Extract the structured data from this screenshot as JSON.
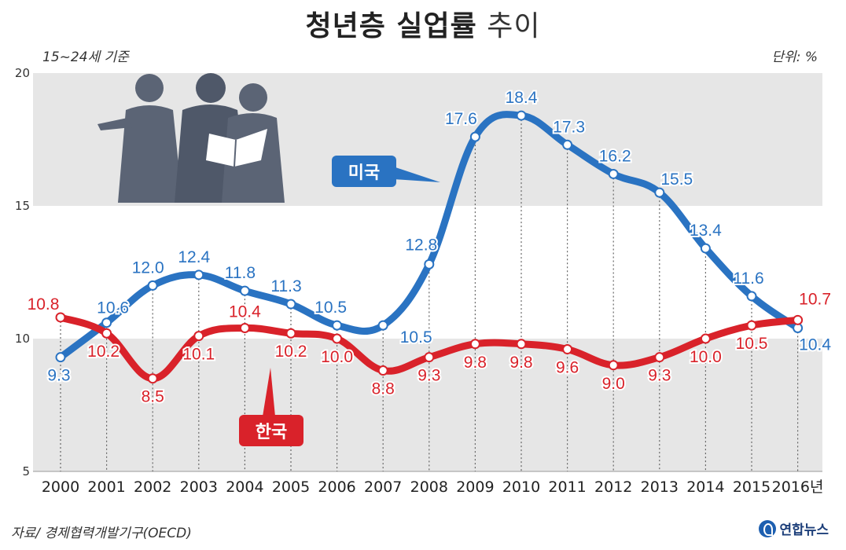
{
  "header": {
    "title_bold": "청년층 실업률",
    "title_light": "추이",
    "subtitle": "15~24세 기준",
    "unit": "단위: %"
  },
  "footer": {
    "source": "자료/ 경제협력개발기구(OECD)",
    "logo": "연합뉴스"
  },
  "colors": {
    "us": "#2a73c2",
    "korea": "#d9222a",
    "band": "#e6e6e6"
  },
  "chart_data": {
    "type": "line",
    "title": "청년층 실업률 추이",
    "xlabel": "",
    "ylabel": "단위: %",
    "ylim": [
      5,
      20
    ],
    "yticks": [
      "5",
      "10",
      "15",
      "20"
    ],
    "categories": [
      "2000",
      "2001",
      "2002",
      "2003",
      "2004",
      "2005",
      "2006",
      "2007",
      "2008",
      "2009",
      "2010",
      "2011",
      "2012",
      "2013",
      "2014",
      "2015",
      "2016년"
    ],
    "series": [
      {
        "name": "미국",
        "values": [
          9.3,
          10.6,
          12.0,
          12.4,
          11.8,
          11.3,
          10.5,
          10.5,
          12.8,
          17.6,
          18.4,
          17.3,
          16.2,
          15.5,
          13.4,
          11.6,
          10.4
        ],
        "labels": [
          "9.3",
          "10.6",
          "12.0",
          "12.4",
          "11.8",
          "11.3",
          "10.5",
          "10.5",
          "12.8",
          "17.6",
          "18.4",
          "17.3",
          "16.2",
          "15.5",
          "13.4",
          "11.6",
          "10.4"
        ]
      },
      {
        "name": "한국",
        "values": [
          10.8,
          10.2,
          8.5,
          10.1,
          10.4,
          10.2,
          10.0,
          8.8,
          9.3,
          9.8,
          9.8,
          9.6,
          9.0,
          9.3,
          10.0,
          10.5,
          10.7
        ],
        "labels": [
          "10.8",
          "10.2",
          "8.5",
          "10.1",
          "10.4",
          "10.2",
          "10.0",
          "8.8",
          "9.3",
          "9.8",
          "9.8",
          "9.6",
          "9.0",
          "9.3",
          "10.0",
          "10.5",
          "10.7"
        ]
      }
    ]
  }
}
